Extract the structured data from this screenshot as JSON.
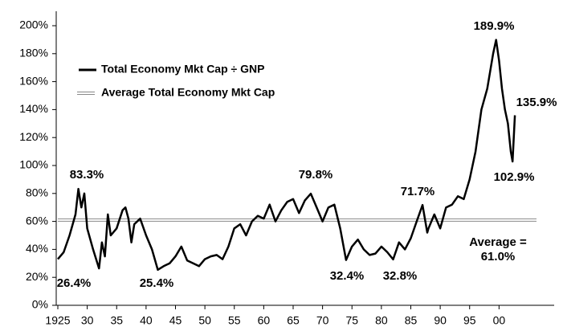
{
  "chart_data": {
    "type": "line",
    "x": [
      1925,
      1926,
      1927,
      1928,
      1928.5,
      1929,
      1929.5,
      1930,
      1931,
      1932,
      1932.5,
      1933,
      1933.5,
      1934,
      1935,
      1936,
      1936.5,
      1937,
      1937.5,
      1938,
      1939,
      1940,
      1941,
      1942,
      1943,
      1944,
      1945,
      1946,
      1947,
      1948,
      1949,
      1950,
      1951,
      1952,
      1953,
      1954,
      1955,
      1956,
      1957,
      1958,
      1959,
      1960,
      1961,
      1962,
      1963,
      1964,
      1965,
      1966,
      1967,
      1968,
      1969,
      1970,
      1971,
      1972,
      1973,
      1974,
      1975,
      1976,
      1977,
      1978,
      1979,
      1980,
      1981,
      1982,
      1983,
      1984,
      1985,
      1986,
      1987,
      1987.8,
      1988,
      1989,
      1990,
      1991,
      1992,
      1993,
      1994,
      1995,
      1996,
      1997,
      1998,
      1999,
      1999.5,
      2000,
      2000.5,
      2001,
      2001.5,
      2002,
      2002.3,
      2002.7
    ],
    "series": [
      {
        "name": "Total Economy Mkt Cap ÷ GNP",
        "color": "#000000",
        "values": [
          33,
          38,
          50,
          65,
          83.3,
          70,
          80,
          55,
          40,
          26.4,
          45,
          35,
          65,
          50,
          55,
          68,
          70,
          62,
          45,
          58,
          62,
          50,
          40,
          25.4,
          28,
          30,
          35,
          42,
          32,
          30,
          28,
          33,
          35,
          36,
          33,
          42,
          55,
          58,
          50,
          60,
          64,
          62,
          72,
          60,
          68,
          74,
          76,
          66,
          75,
          79.8,
          70,
          60,
          70,
          72,
          55,
          32.4,
          42,
          47,
          40,
          36,
          37,
          42,
          38,
          32.8,
          45,
          40,
          48,
          60,
          71.7,
          52,
          55,
          65,
          55,
          70,
          72,
          78,
          76,
          90,
          110,
          140,
          155,
          180,
          189.9,
          175,
          155,
          140,
          130,
          110,
          102.9,
          135.9
        ]
      }
    ],
    "average": {
      "name": "Average Total Economy Mkt Cap",
      "value": 61.0
    },
    "xlim": [
      1925,
      2003.5
    ],
    "xticks": [
      1925,
      {
        "value": 1930,
        "label": "30"
      },
      {
        "value": 1935,
        "label": "35"
      },
      {
        "value": 1940,
        "label": "40"
      },
      {
        "value": 1945,
        "label": "45"
      },
      {
        "value": 1950,
        "label": "50"
      },
      {
        "value": 1955,
        "label": "55"
      },
      {
        "value": 1960,
        "label": "60"
      },
      {
        "value": 1965,
        "label": "65"
      },
      {
        "value": 1970,
        "label": "70"
      },
      {
        "value": 1975,
        "label": "75"
      },
      {
        "value": 1980,
        "label": "80"
      },
      {
        "value": 1985,
        "label": "85"
      },
      {
        "value": 1990,
        "label": "90"
      },
      {
        "value": 1995,
        "label": "95"
      },
      {
        "value": 2000,
        "label": "00"
      }
    ],
    "ylim": [
      0,
      200
    ],
    "yticks": [
      {
        "value": 0,
        "label": "0%"
      },
      {
        "value": 20,
        "label": "20%"
      },
      {
        "value": 40,
        "label": "40%"
      },
      {
        "value": 60,
        "label": "60%"
      },
      {
        "value": 80,
        "label": "80%"
      },
      {
        "value": 100,
        "label": "100%"
      },
      {
        "value": 120,
        "label": "120%"
      },
      {
        "value": 140,
        "label": "140%"
      },
      {
        "value": 160,
        "label": "160%"
      },
      {
        "value": 180,
        "label": "180%"
      },
      {
        "value": 200,
        "label": "200%"
      }
    ],
    "annotations": [
      "83.3%",
      "26.4%",
      "25.4%",
      "79.8%",
      "32.4%",
      "32.8%",
      "71.7%",
      "189.9%",
      "135.9%",
      "102.9%",
      "Average =",
      "61.0%"
    ]
  }
}
